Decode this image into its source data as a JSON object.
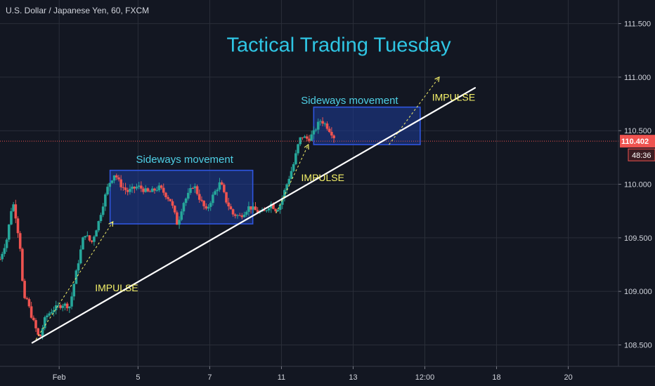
{
  "symbol": {
    "title": "U.S. Dollar / Japanese Yen, 60, FXCM"
  },
  "annotations": {
    "headline": "Tactical Trading Tuesday",
    "sideways_1": "Sideways movement",
    "sideways_2": "Sideways movement",
    "impulse_1": "IMPULSE",
    "impulse_2": "IMPULSE",
    "impulse_3": "IMPULSE"
  },
  "colors": {
    "background": "#131722",
    "grid": "#2a2e39",
    "up_candle": "#26a69a",
    "down_candle": "#ef5350",
    "headline": "#2fc6e4",
    "label_cyan": "#4fd0e6",
    "impulse_label": "#f5f169",
    "box_fill": "#1e3d99",
    "box_stroke": "#2f56e0",
    "trendline": "#ffffff",
    "price_line": "#ef5350",
    "price_badge": "#ef5350"
  },
  "chart_data": {
    "type": "candlestick",
    "ylim": [
      108.3,
      111.72
    ],
    "y_ticks": [
      "111.500",
      "111.000",
      "110.500",
      "110.000",
      "109.500",
      "109.000",
      "108.500"
    ],
    "y_tick_values": [
      111.5,
      111.0,
      110.5,
      110.0,
      109.5,
      109.0,
      108.5
    ],
    "x_ticks": [
      "Feb",
      "5",
      "7",
      "11",
      "13",
      "12:00",
      "18",
      "20"
    ],
    "x_tick_positions": [
      0.8,
      3.0,
      5.0,
      7.0,
      9.0,
      11.0,
      13.0,
      15.0
    ],
    "xlim": [
      -0.85,
      16.4
    ],
    "current_price": "110.402",
    "current_price_value": 110.402,
    "countdown": "48:36",
    "ohlc_note": "candles approximate, x in day-index units (0.8 = Feb, 3 = Feb 5, 5 = Feb 7, 7 = Feb 11, 9 = Feb 13)",
    "anchors": [
      [
        -0.85,
        109.3
      ],
      [
        -0.65,
        109.5
      ],
      [
        -0.5,
        109.85
      ],
      [
        -0.42,
        109.72
      ],
      [
        -0.3,
        109.45
      ],
      [
        -0.25,
        109.3
      ],
      [
        -0.2,
        108.88
      ],
      [
        -0.12,
        108.95
      ],
      [
        0.0,
        108.8
      ],
      [
        0.15,
        108.65
      ],
      [
        0.25,
        108.55
      ],
      [
        0.32,
        108.64
      ],
      [
        0.42,
        108.76
      ],
      [
        0.62,
        108.83
      ],
      [
        0.9,
        108.88
      ],
      [
        1.1,
        108.86
      ],
      [
        1.2,
        109.05
      ],
      [
        1.5,
        109.55
      ],
      [
        1.6,
        109.5
      ],
      [
        1.7,
        109.45
      ],
      [
        1.9,
        109.65
      ],
      [
        2.05,
        109.85
      ],
      [
        2.18,
        110.0
      ],
      [
        2.35,
        110.1
      ],
      [
        2.5,
        110.0
      ],
      [
        2.7,
        109.93
      ],
      [
        3.0,
        109.98
      ],
      [
        3.3,
        109.92
      ],
      [
        3.6,
        109.97
      ],
      [
        3.9,
        109.85
      ],
      [
        4.0,
        109.75
      ],
      [
        4.1,
        109.62
      ],
      [
        4.25,
        109.82
      ],
      [
        4.4,
        109.9
      ],
      [
        4.55,
        110.0
      ],
      [
        4.7,
        109.88
      ],
      [
        4.9,
        109.75
      ],
      [
        5.1,
        109.9
      ],
      [
        5.3,
        110.02
      ],
      [
        5.45,
        109.85
      ],
      [
        5.65,
        109.72
      ],
      [
        5.85,
        109.7
      ],
      [
        6.1,
        109.79
      ],
      [
        6.3,
        109.75
      ],
      [
        6.5,
        109.73
      ],
      [
        6.7,
        109.82
      ],
      [
        6.85,
        109.76
      ],
      [
        6.95,
        109.8
      ],
      [
        7.05,
        109.9
      ],
      [
        7.2,
        110.05
      ],
      [
        7.35,
        110.2
      ],
      [
        7.45,
        110.35
      ],
      [
        7.55,
        110.45
      ],
      [
        7.75,
        110.42
      ],
      [
        7.9,
        110.48
      ],
      [
        8.0,
        110.55
      ],
      [
        8.1,
        110.6
      ],
      [
        8.25,
        110.55
      ],
      [
        8.4,
        110.48
      ],
      [
        8.5,
        110.42
      ]
    ],
    "trendline": {
      "from": [
        0.05,
        108.52
      ],
      "to": [
        12.4,
        110.9
      ]
    },
    "price_line_level": 110.402,
    "boxes": [
      {
        "x_range": [
          2.22,
          6.2
        ],
        "y_range": [
          109.63,
          110.13
        ]
      },
      {
        "x_range": [
          7.9,
          10.87
        ],
        "y_range": [
          110.37,
          110.72
        ]
      }
    ],
    "impulse_arrows": [
      {
        "from": [
          0.15,
          108.55
        ],
        "to": [
          2.3,
          109.65
        ]
      },
      {
        "from": [
          6.85,
          109.73
        ],
        "to": [
          7.75,
          110.37
        ]
      },
      {
        "from": [
          10.0,
          110.37
        ],
        "to": [
          11.4,
          111.0
        ]
      }
    ],
    "label_anchors": {
      "headline": [
        8.6,
        111.24
      ],
      "sideways_1": [
        4.3,
        110.2
      ],
      "sideways_2": [
        8.9,
        110.75
      ],
      "impulse_1": [
        1.8,
        109.0
      ],
      "impulse_2": [
        7.55,
        110.03
      ],
      "impulse_3": [
        11.2,
        110.78
      ]
    }
  }
}
